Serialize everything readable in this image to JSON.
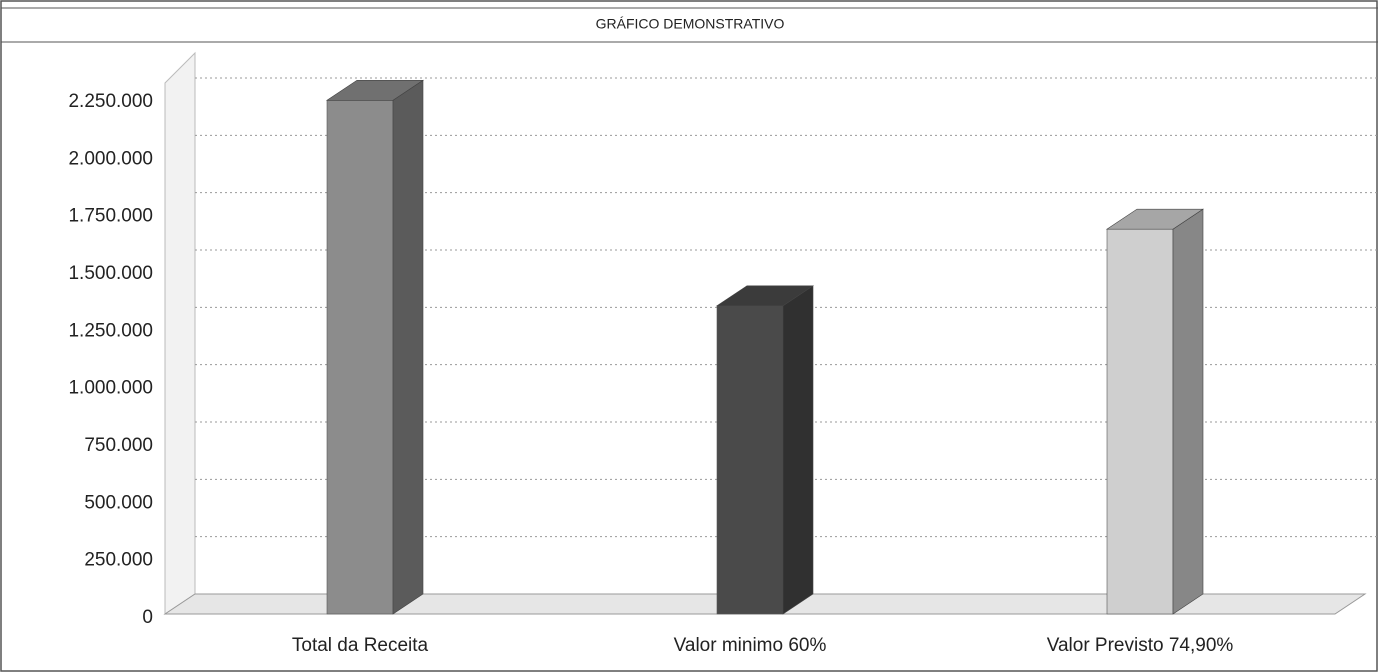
{
  "chart_data": {
    "type": "bar3d",
    "title": "GRÁFICO DEMONSTRATIVO",
    "categories": [
      "Total da Receita",
      "Valor minimo 60%",
      "Valor Previsto 74,90%"
    ],
    "values": [
      2240000,
      1344000,
      1678000
    ],
    "colors": [
      "#8c8c8c",
      "#4a4a4a",
      "#cfcfcf"
    ],
    "ylim": [
      0,
      2250000
    ],
    "yticks": [
      0,
      {
        "value": 250000,
        "label": "250.000"
      },
      {
        "value": 500000,
        "label": "500.000"
      },
      {
        "value": 750000,
        "label": "750.000"
      },
      {
        "value": 1000000,
        "label": "1.000.000"
      },
      {
        "value": 1250000,
        "label": "1.250.000"
      },
      {
        "value": 1500000,
        "label": "1.500.000"
      },
      {
        "value": 1750000,
        "label": "1.750.000"
      },
      {
        "value": 2000000,
        "label": "2.000.000"
      },
      {
        "value": 2250000,
        "label": "2.250.000"
      }
    ],
    "grid": true
  }
}
